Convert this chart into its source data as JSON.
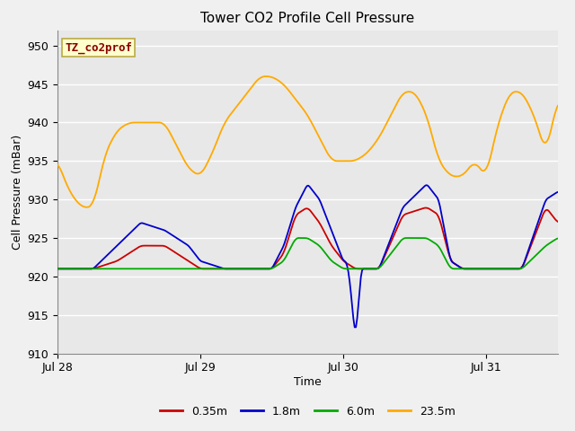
{
  "title": "Tower CO2 Profile Cell Pressure",
  "xlabel": "Time",
  "ylabel": "Cell Pressure (mBar)",
  "ylim": [
    910,
    952
  ],
  "yticks": [
    910,
    915,
    920,
    925,
    930,
    935,
    940,
    945,
    950
  ],
  "xtick_positions": [
    0,
    24,
    48,
    72
  ],
  "xtick_labels": [
    "Jul 28",
    "Jul 29",
    "Jul 30",
    "Jul 31"
  ],
  "xlim": [
    0,
    84
  ],
  "legend_label": "TZ_co2prof",
  "series_labels": [
    "0.35m",
    "1.8m",
    "6.0m",
    "23.5m"
  ],
  "series_colors": [
    "#cc0000",
    "#0000cc",
    "#00aa00",
    "#ffaa00"
  ],
  "fig_facecolor": "#f0f0f0",
  "ax_facecolor": "#e8e8e8",
  "grid_color": "#ffffff",
  "title_fontsize": 11,
  "axis_fontsize": 9,
  "tick_fontsize": 9,
  "orange_t": [
    0,
    2,
    4,
    6,
    8,
    10,
    12,
    14,
    16,
    18,
    20,
    22,
    24,
    26,
    28,
    30,
    32,
    34,
    36,
    38,
    40,
    42,
    44,
    46,
    48,
    50,
    52,
    54,
    56,
    58,
    60,
    62,
    64,
    66,
    68,
    70,
    72,
    74,
    76,
    78,
    80,
    82,
    84
  ],
  "orange_v": [
    935,
    931,
    929,
    929,
    936,
    939,
    940,
    940,
    940,
    940,
    937,
    934,
    933,
    936,
    940,
    942,
    944,
    946,
    946,
    945,
    943,
    941,
    938,
    935,
    935,
    935,
    936,
    938,
    941,
    944,
    944,
    941,
    935,
    933,
    933,
    935,
    933,
    940,
    944,
    944,
    941,
    936,
    943
  ],
  "blue_t": [
    0,
    6,
    10,
    14,
    18,
    22,
    24,
    28,
    32,
    36,
    38,
    40,
    42,
    44,
    46,
    48,
    48.5,
    49,
    49.5,
    50,
    50.5,
    51,
    52,
    54,
    58,
    62,
    64,
    66,
    68,
    70,
    72,
    74,
    78,
    82,
    84
  ],
  "blue_v": [
    921,
    921,
    924,
    927,
    926,
    924,
    922,
    921,
    921,
    921,
    924,
    929,
    932,
    930,
    926,
    922,
    922,
    920,
    916,
    912,
    916,
    921,
    921,
    921,
    929,
    932,
    930,
    922,
    921,
    921,
    921,
    921,
    921,
    930,
    931
  ],
  "red_t": [
    0,
    6,
    10,
    14,
    18,
    22,
    24,
    28,
    32,
    36,
    38,
    40,
    42,
    44,
    46,
    48,
    50,
    52,
    54,
    58,
    62,
    64,
    66,
    68,
    70,
    72,
    74,
    78,
    82,
    84
  ],
  "red_v": [
    921,
    921,
    922,
    924,
    924,
    922,
    921,
    921,
    921,
    921,
    923,
    928,
    929,
    927,
    924,
    922,
    921,
    921,
    921,
    928,
    929,
    928,
    922,
    921,
    921,
    921,
    921,
    921,
    929,
    927
  ],
  "green_t": [
    0,
    6,
    10,
    14,
    18,
    22,
    24,
    28,
    32,
    36,
    38,
    40,
    42,
    44,
    46,
    48,
    50,
    52,
    54,
    58,
    62,
    64,
    66,
    68,
    70,
    72,
    74,
    78,
    82,
    84
  ],
  "green_v": [
    921,
    921,
    921,
    921,
    921,
    921,
    921,
    921,
    921,
    921,
    922,
    925,
    925,
    924,
    922,
    921,
    921,
    921,
    921,
    925,
    925,
    924,
    921,
    921,
    921,
    921,
    921,
    921,
    924,
    925
  ]
}
